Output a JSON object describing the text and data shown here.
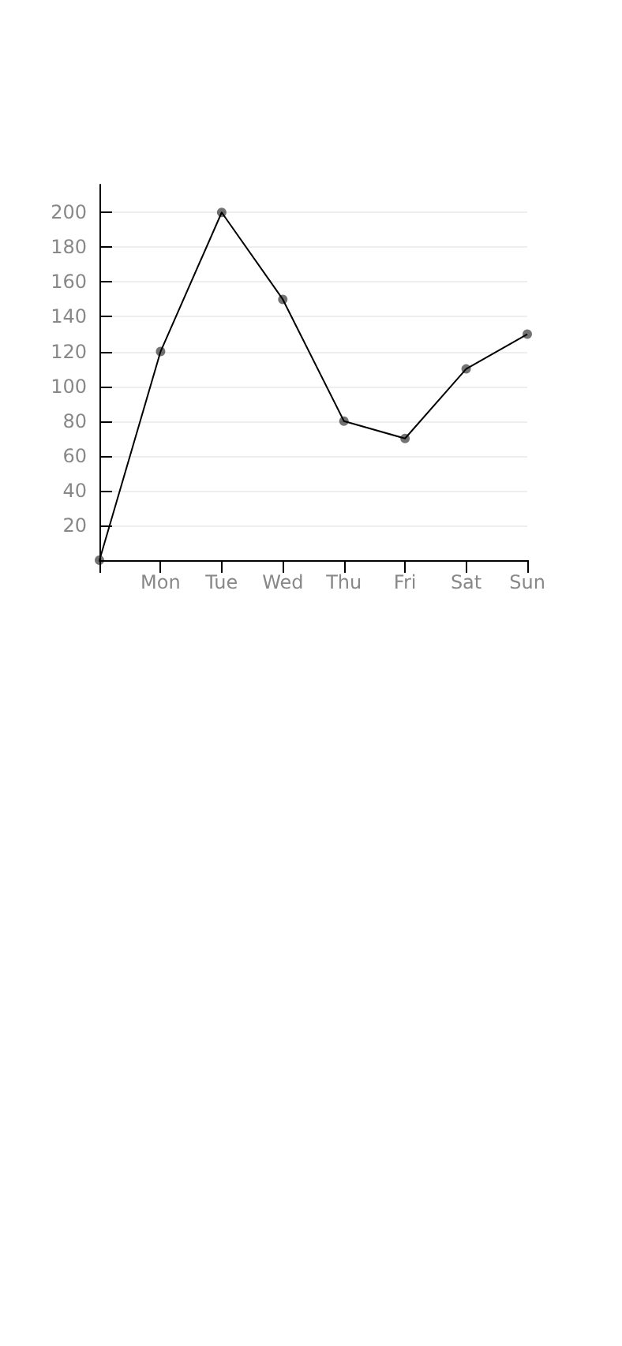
{
  "chart_data": {
    "type": "line",
    "categories": [
      null,
      "Mon",
      "Tue",
      "Wed",
      "Thu",
      "Fri",
      "Sat",
      "Sun"
    ],
    "series": [
      {
        "color": "#000000",
        "values": [
          0,
          120,
          200,
          150,
          80,
          70,
          110,
          130
        ]
      }
    ],
    "ylim": [
      0,
      216
    ],
    "yticks": [
      20,
      40,
      60,
      80,
      100,
      120,
      140,
      160,
      180,
      200
    ],
    "grid": "y",
    "marker": "circle"
  }
}
